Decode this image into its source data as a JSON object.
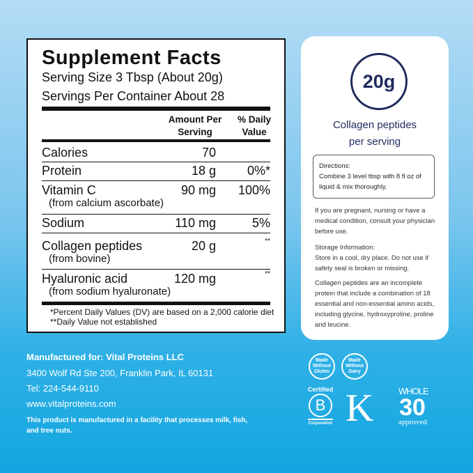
{
  "facts": {
    "title": "Supplement Facts",
    "serving_size": "Serving Size 3 Tbsp (About 20g)",
    "servings": "Servings Per Container About 28",
    "header_amount": "Amount Per Serving",
    "header_dv": "% Daily Value",
    "rows": [
      {
        "name": "Calories",
        "sub": "",
        "amount": "70",
        "dv": ""
      },
      {
        "name": "Protein",
        "sub": "",
        "amount": "18 g",
        "dv": "0%*"
      },
      {
        "name": "Vitamin C",
        "sub": "(from calcium ascorbate)",
        "amount": "90 mg",
        "dv": "100%"
      },
      {
        "name": "Sodium",
        "sub": "",
        "amount": "110 mg",
        "dv": "5%"
      },
      {
        "name": "Collagen peptides",
        "sub": "(from bovine)",
        "amount": "20 g",
        "dv": "**"
      },
      {
        "name": "Hyaluronic acid",
        "sub": "(from sodium hyaluronate)",
        "amount": "120 mg",
        "dv": "**"
      }
    ],
    "foot1": "*Percent Daily Values (DV) are based on a 2,000 calorie diet",
    "foot2": "**Daily Value not established"
  },
  "card": {
    "amount": "20g",
    "label1": "Collagen peptides",
    "label2": "per serving",
    "directions_title": "Directions:",
    "directions": "Combine 3 level tbsp with 8 fl oz of liquid & mix thoroughly.",
    "warning": "If you are pregnant, nursing or have a medical condition, consult your physician before use.",
    "storage_title": "Storage Information:",
    "storage": "Store in a cool, dry place. Do not use if safety seal is broken or missing.",
    "info": "Collagen peptides are an incomplete protein that include a combination of 18 essential and non-essential amino acids, including glycine, hydroxyproline, proline and leucine."
  },
  "maker": {
    "line1": "Manufactured for: Vital Proteins LLC",
    "line2": "3400 Wolf Rd Ste 200, Franklin Park, IL 60131",
    "line3": "Tel: 224-544-9110",
    "line4": "www.vitalproteins.com",
    "note": "This product is manufactured in a facility that processes milk, fish, and tree nuts."
  },
  "logos": {
    "gluten": "Made Without Gluten",
    "dairy": "Made Without Dairy",
    "bcorp_top": "Certified",
    "bcorp_letter": "B",
    "bcorp_bottom": "Corporation",
    "kosher": "K",
    "whole": "WHOLE",
    "thirty": "30",
    "approved": "approved"
  },
  "colors": {
    "navy": "#1f2a5c",
    "bg_top": "#b4dcf4",
    "bg_bottom": "#12a6e0"
  }
}
